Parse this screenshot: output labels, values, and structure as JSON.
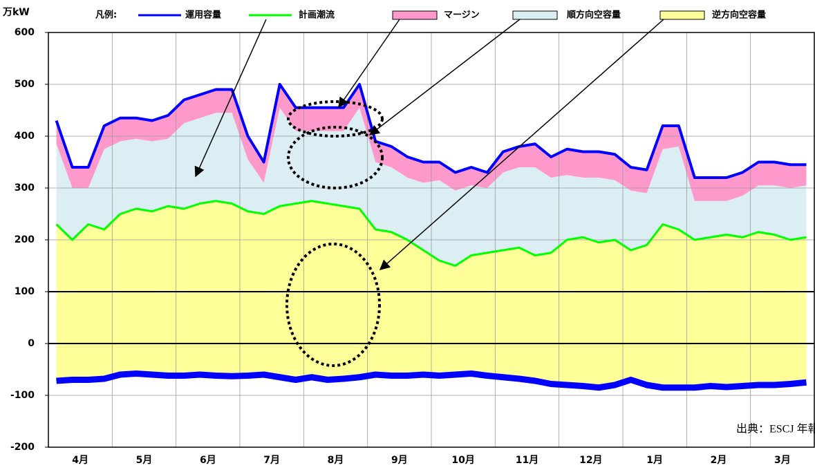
{
  "chart_data": {
    "type": "area",
    "unit": "万kW",
    "legend_title": "凡例:",
    "source": "出典：ESCJ 年報",
    "categories": [
      "4月",
      "5月",
      "6月",
      "7月",
      "8月",
      "9月",
      "10月",
      "11月",
      "12月",
      "1月",
      "2月",
      "3月"
    ],
    "x": [
      0.125,
      0.375,
      0.625,
      0.875,
      1.125,
      1.375,
      1.625,
      1.875,
      2.125,
      2.375,
      2.625,
      2.875,
      3.125,
      3.375,
      3.625,
      3.875,
      4.125,
      4.375,
      4.625,
      4.875,
      5.125,
      5.375,
      5.625,
      5.875,
      6.125,
      6.375,
      6.625,
      6.875,
      7.125,
      7.375,
      7.625,
      7.875,
      8.125,
      8.375,
      8.625,
      8.875,
      9.125,
      9.375,
      9.625,
      9.875,
      10.125,
      10.375,
      10.625,
      10.875,
      11.125,
      11.375,
      11.625,
      11.875
    ],
    "xlim": [
      0,
      12
    ],
    "ylim": [
      -200,
      600
    ],
    "yticks": [
      600,
      500,
      400,
      300,
      200,
      100,
      0,
      -100,
      -200
    ],
    "reference_lines": [
      100,
      0
    ],
    "grid": true,
    "series": [
      {
        "name": "運用容量",
        "color": "#0000ff",
        "values": [
          430,
          340,
          340,
          420,
          435,
          435,
          430,
          440,
          470,
          480,
          490,
          490,
          400,
          350,
          500,
          455,
          455,
          455,
          455,
          500,
          390,
          380,
          360,
          350,
          350,
          330,
          340,
          330,
          370,
          380,
          385,
          360,
          375,
          370,
          370,
          365,
          340,
          335,
          420,
          420,
          320,
          320,
          320,
          330,
          350,
          350,
          345,
          345
        ],
        "reverse_values": [
          -72,
          -70,
          -70,
          -68,
          -60,
          -58,
          -60,
          -62,
          -62,
          -60,
          -62,
          -63,
          -62,
          -60,
          -65,
          -70,
          -65,
          -70,
          -68,
          -65,
          -60,
          -62,
          -62,
          -60,
          -62,
          -60,
          -58,
          -62,
          -65,
          -68,
          -72,
          -78,
          -80,
          -82,
          -85,
          -80,
          -70,
          -80,
          -85,
          -85,
          -85,
          -82,
          -84,
          -82,
          -80,
          -80,
          -78,
          -75
        ]
      },
      {
        "name": "計画潮流",
        "color": "#00ff00",
        "values": [
          230,
          200,
          230,
          220,
          250,
          260,
          255,
          265,
          260,
          270,
          275,
          270,
          255,
          250,
          265,
          270,
          275,
          270,
          265,
          260,
          220,
          215,
          200,
          180,
          160,
          150,
          170,
          175,
          180,
          185,
          170,
          175,
          200,
          205,
          195,
          200,
          180,
          190,
          230,
          220,
          200,
          205,
          210,
          205,
          215,
          210,
          200,
          205
        ]
      },
      {
        "name": "マージン",
        "color": "#ff99cc",
        "values": [
          45,
          40,
          40,
          45,
          45,
          40,
          40,
          45,
          45,
          45,
          45,
          45,
          45,
          40,
          45,
          45,
          45,
          45,
          45,
          45,
          40,
          40,
          40,
          40,
          35,
          35,
          35,
          30,
          40,
          40,
          45,
          40,
          50,
          50,
          50,
          50,
          45,
          45,
          45,
          40,
          45,
          45,
          45,
          45,
          45,
          45,
          45,
          40
        ]
      },
      {
        "name": "順方向空容量",
        "color": "#dbeef3",
        "values": [
          155,
          100,
          70,
          155,
          140,
          135,
          135,
          130,
          165,
          165,
          170,
          175,
          100,
          60,
          190,
          140,
          135,
          140,
          145,
          195,
          130,
          125,
          120,
          130,
          155,
          145,
          135,
          125,
          150,
          155,
          170,
          145,
          125,
          115,
          125,
          115,
          115,
          100,
          145,
          160,
          75,
          70,
          65,
          80,
          90,
          95,
          100,
          100
        ]
      },
      {
        "name": "逆方向空容量",
        "color": "#ffff99",
        "values": [
          302,
          270,
          300,
          288,
          310,
          318,
          315,
          327,
          322,
          330,
          337,
          333,
          317,
          310,
          330,
          340,
          340,
          340,
          333,
          325,
          280,
          277,
          262,
          240,
          222,
          210,
          228,
          237,
          245,
          253,
          242,
          253,
          280,
          287,
          280,
          280,
          250,
          270,
          315,
          305,
          285,
          287,
          294,
          287,
          295,
          290,
          278,
          280
        ]
      }
    ]
  }
}
